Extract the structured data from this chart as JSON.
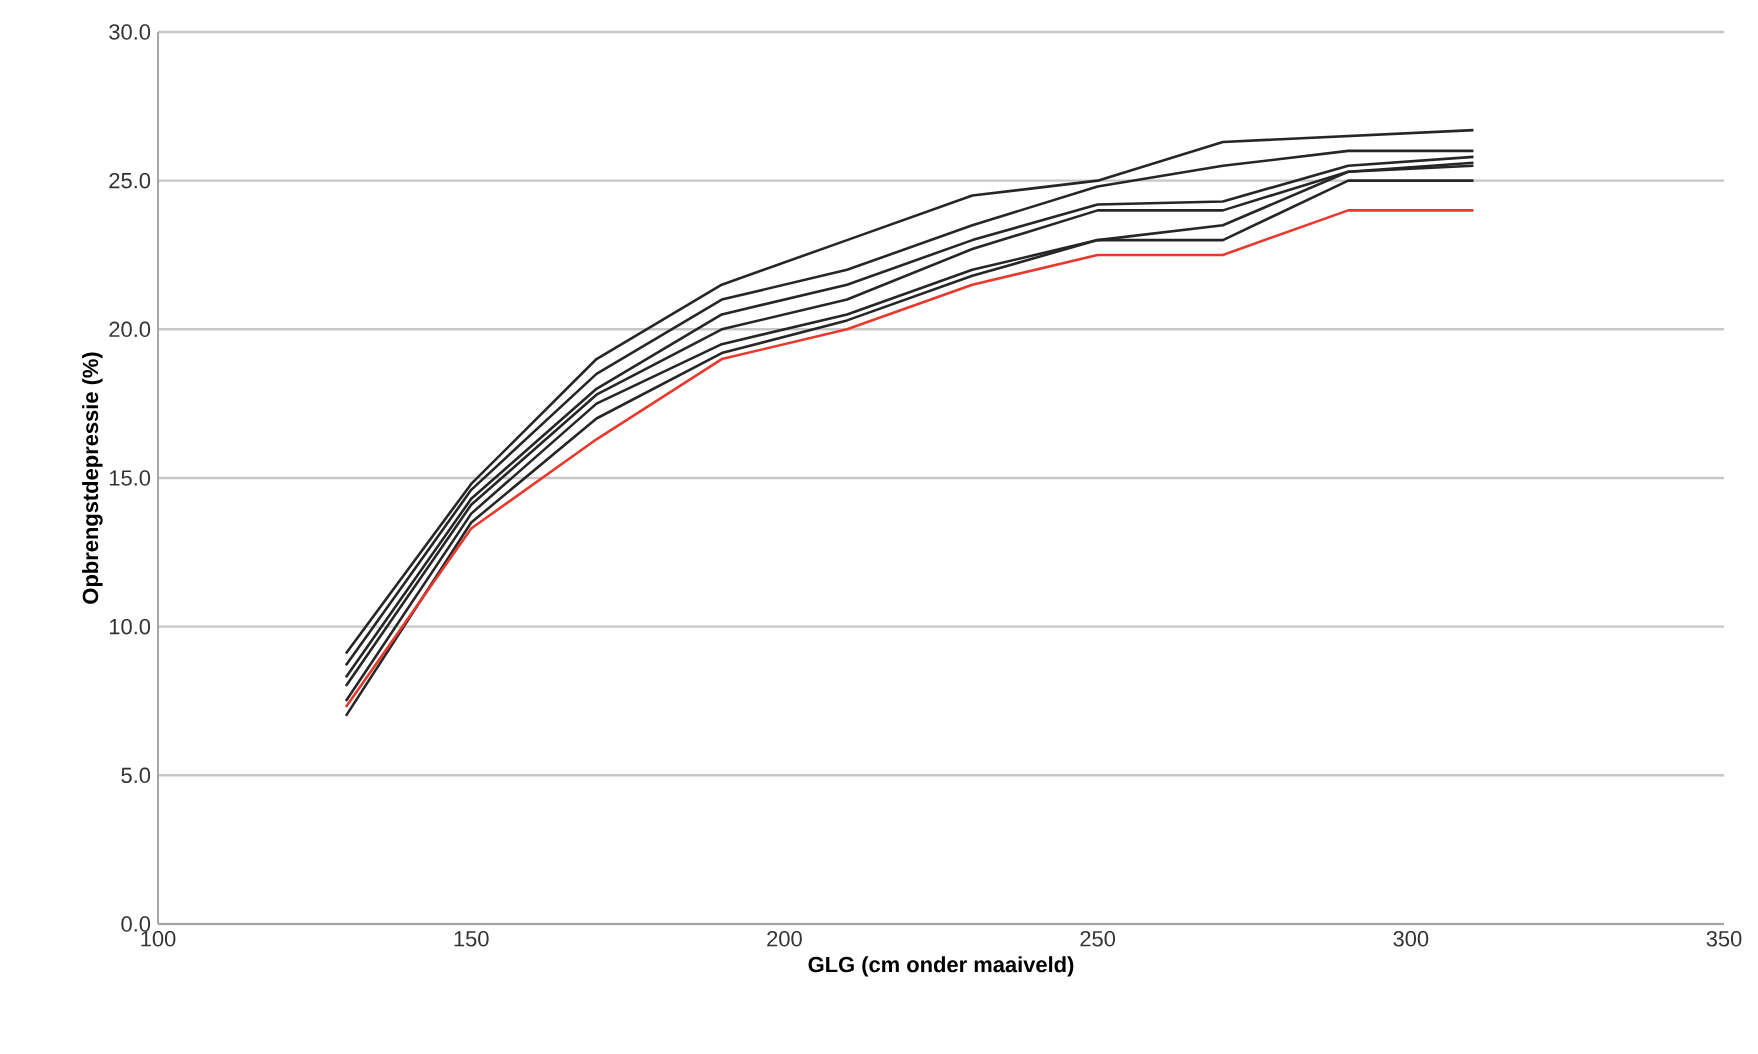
{
  "chart_data": {
    "type": "line",
    "xlabel": "GLG (cm onder maaiveld)",
    "ylabel": "Opbrengstdepressie (%)",
    "x": [
      130,
      150,
      170,
      190,
      210,
      230,
      250,
      270,
      290,
      310
    ],
    "xlim": [
      100,
      350
    ],
    "xticks": [
      100,
      150,
      200,
      250,
      300,
      350
    ],
    "ylim": [
      0,
      30
    ],
    "yticks": [
      {
        "value": 0,
        "label": "0.0"
      },
      {
        "value": 5,
        "label": "5.0"
      },
      {
        "value": 10,
        "label": "10.0"
      },
      {
        "value": 15,
        "label": "15.0"
      },
      {
        "value": 20,
        "label": "20.0"
      },
      {
        "value": 25,
        "label": "25.0"
      },
      {
        "value": 30,
        "label": "30.0"
      }
    ],
    "grid": "y",
    "marker": "none",
    "line_style": "solid",
    "series": [
      {
        "color": "#262626",
        "values": [
          9.1,
          14.8,
          19.0,
          21.5,
          23.0,
          24.5,
          25.0,
          26.3,
          26.5,
          26.7
        ]
      },
      {
        "color": "#262626",
        "values": [
          8.7,
          14.6,
          18.5,
          21.0,
          22.0,
          23.5,
          24.8,
          25.5,
          26.0,
          26.0
        ]
      },
      {
        "color": "#262626",
        "values": [
          8.3,
          14.3,
          18.0,
          20.5,
          21.5,
          23.0,
          24.2,
          24.3,
          25.5,
          25.8
        ]
      },
      {
        "color": "#262626",
        "values": [
          8.0,
          14.1,
          17.8,
          20.0,
          21.0,
          22.7,
          24.0,
          24.0,
          25.3,
          25.6
        ]
      },
      {
        "color": "#262626",
        "values": [
          7.5,
          13.8,
          17.5,
          19.5,
          20.5,
          22.0,
          23.0,
          23.5,
          25.3,
          25.5
        ]
      },
      {
        "color": "#262626",
        "values": [
          7.0,
          13.5,
          17.0,
          19.2,
          20.3,
          21.8,
          23.0,
          23.0,
          25.0,
          25.0
        ]
      },
      {
        "color": "#e8392e",
        "values": [
          7.3,
          13.3,
          16.3,
          19.0,
          20.0,
          21.5,
          22.5,
          22.5,
          24.0,
          24.0
        ]
      }
    ]
  }
}
